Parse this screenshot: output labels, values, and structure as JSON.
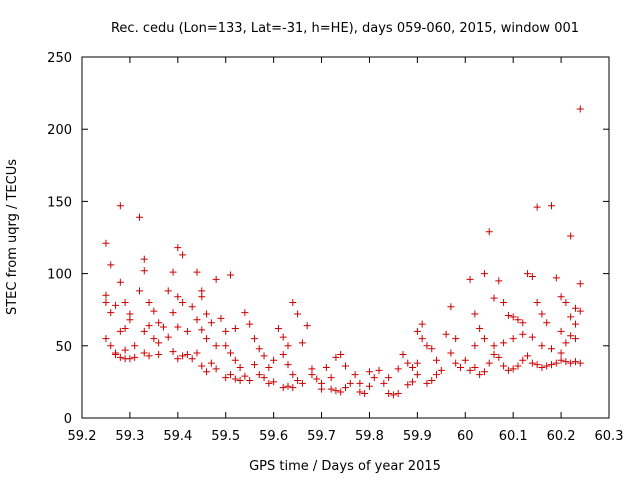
{
  "chart_data": {
    "type": "scatter",
    "title": "Rec. cedu (Lon=133, Lat=-31, h=HE), days 059-060, 2015, window 001",
    "xlabel": "GPS time / Days of year 2015",
    "ylabel": "STEC from uqrg / TECUs",
    "xlim": [
      59.2,
      60.3
    ],
    "ylim": [
      0,
      250
    ],
    "xticks": [
      "59.2",
      "59.3",
      "59.4",
      "59.5",
      "59.6",
      "59.7",
      "59.8",
      "59.9",
      "60",
      "60.1",
      "60.2",
      "60.3"
    ],
    "yticks": [
      "0",
      "50",
      "100",
      "150",
      "200",
      "250"
    ],
    "marker": "+",
    "color": "#cc0000",
    "grid": false,
    "legend": "none",
    "points": [
      [
        59.25,
        121
      ],
      [
        59.26,
        106
      ],
      [
        59.28,
        147
      ],
      [
        59.28,
        94
      ],
      [
        59.25,
        85
      ],
      [
        59.25,
        80
      ],
      [
        59.27,
        78
      ],
      [
        59.29,
        80
      ],
      [
        59.3,
        72
      ],
      [
        59.3,
        68
      ],
      [
        59.26,
        73
      ],
      [
        59.25,
        55
      ],
      [
        59.26,
        50
      ],
      [
        59.27,
        45
      ],
      [
        59.27,
        44
      ],
      [
        59.28,
        42
      ],
      [
        59.29,
        41
      ],
      [
        59.3,
        41
      ],
      [
        59.31,
        42
      ],
      [
        59.29,
        47
      ],
      [
        59.31,
        50
      ],
      [
        59.28,
        60
      ],
      [
        59.29,
        62
      ],
      [
        59.32,
        139
      ],
      [
        59.33,
        110
      ],
      [
        59.33,
        102
      ],
      [
        59.32,
        88
      ],
      [
        59.34,
        80
      ],
      [
        59.35,
        74
      ],
      [
        59.34,
        64
      ],
      [
        59.36,
        66
      ],
      [
        59.33,
        60
      ],
      [
        59.35,
        55
      ],
      [
        59.36,
        52
      ],
      [
        59.33,
        45
      ],
      [
        59.34,
        43
      ],
      [
        59.36,
        44
      ],
      [
        59.37,
        63
      ],
      [
        59.38,
        88
      ],
      [
        59.39,
        101
      ],
      [
        59.4,
        118
      ],
      [
        59.41,
        113
      ],
      [
        59.4,
        84
      ],
      [
        59.41,
        80
      ],
      [
        59.39,
        73
      ],
      [
        59.4,
        63
      ],
      [
        59.42,
        60
      ],
      [
        59.38,
        56
      ],
      [
        59.39,
        46
      ],
      [
        59.41,
        43
      ],
      [
        59.42,
        44
      ],
      [
        59.43,
        41
      ],
      [
        59.4,
        41
      ],
      [
        59.44,
        101
      ],
      [
        59.45,
        88
      ],
      [
        59.45,
        84
      ],
      [
        59.43,
        77
      ],
      [
        59.46,
        72
      ],
      [
        59.44,
        68
      ],
      [
        59.47,
        66
      ],
      [
        59.45,
        61
      ],
      [
        59.46,
        55
      ],
      [
        59.48,
        50
      ],
      [
        59.44,
        45
      ],
      [
        59.45,
        36
      ],
      [
        59.47,
        38
      ],
      [
        59.48,
        34
      ],
      [
        59.46,
        32
      ],
      [
        59.48,
        96
      ],
      [
        59.51,
        99
      ],
      [
        59.49,
        69
      ],
      [
        59.5,
        60
      ],
      [
        59.52,
        62
      ],
      [
        59.5,
        50
      ],
      [
        59.51,
        45
      ],
      [
        59.52,
        40
      ],
      [
        59.53,
        35
      ],
      [
        59.5,
        28
      ],
      [
        59.51,
        30
      ],
      [
        59.52,
        27
      ],
      [
        59.53,
        26
      ],
      [
        59.54,
        29
      ],
      [
        59.55,
        26
      ],
      [
        59.54,
        73
      ],
      [
        59.55,
        65
      ],
      [
        59.56,
        55
      ],
      [
        59.57,
        48
      ],
      [
        59.58,
        43
      ],
      [
        59.56,
        37
      ],
      [
        59.57,
        30
      ],
      [
        59.58,
        28
      ],
      [
        59.59,
        24
      ],
      [
        59.6,
        25
      ],
      [
        59.59,
        35
      ],
      [
        59.6,
        40
      ],
      [
        59.61,
        62
      ],
      [
        59.62,
        56
      ],
      [
        59.63,
        50
      ],
      [
        59.64,
        80
      ],
      [
        59.65,
        72
      ],
      [
        59.66,
        52
      ],
      [
        59.62,
        44
      ],
      [
        59.63,
        37
      ],
      [
        59.64,
        30
      ],
      [
        59.65,
        26
      ],
      [
        59.66,
        24
      ],
      [
        59.67,
        64
      ],
      [
        59.68,
        34
      ],
      [
        59.62,
        21
      ],
      [
        59.63,
        22
      ],
      [
        59.64,
        21
      ],
      [
        59.68,
        30
      ],
      [
        59.69,
        27
      ],
      [
        59.7,
        24
      ],
      [
        59.71,
        35
      ],
      [
        59.72,
        28
      ],
      [
        59.73,
        42
      ],
      [
        59.74,
        44
      ],
      [
        59.75,
        36
      ],
      [
        59.7,
        20
      ],
      [
        59.72,
        20
      ],
      [
        59.73,
        19
      ],
      [
        59.74,
        18
      ],
      [
        59.75,
        21
      ],
      [
        59.76,
        24
      ],
      [
        59.77,
        30
      ],
      [
        59.78,
        18
      ],
      [
        59.79,
        17
      ],
      [
        59.8,
        22
      ],
      [
        59.81,
        28
      ],
      [
        59.82,
        33
      ],
      [
        59.83,
        24
      ],
      [
        59.84,
        17
      ],
      [
        59.85,
        16
      ],
      [
        59.86,
        17
      ],
      [
        59.84,
        28
      ],
      [
        59.86,
        34
      ],
      [
        59.87,
        44
      ],
      [
        59.88,
        38
      ],
      [
        59.8,
        32
      ],
      [
        59.78,
        24
      ],
      [
        59.88,
        23
      ],
      [
        59.89,
        25
      ],
      [
        59.9,
        30
      ],
      [
        59.91,
        65
      ],
      [
        59.9,
        60
      ],
      [
        59.91,
        55
      ],
      [
        59.92,
        50
      ],
      [
        59.93,
        48
      ],
      [
        59.89,
        35
      ],
      [
        59.9,
        38
      ],
      [
        59.92,
        24
      ],
      [
        59.93,
        26
      ],
      [
        59.94,
        30
      ],
      [
        59.95,
        33
      ],
      [
        59.94,
        40
      ],
      [
        59.96,
        58
      ],
      [
        59.97,
        77
      ],
      [
        59.98,
        55
      ],
      [
        59.97,
        45
      ],
      [
        59.98,
        38
      ],
      [
        59.99,
        35
      ],
      [
        60.0,
        40
      ],
      [
        60.01,
        96
      ],
      [
        60.02,
        72
      ],
      [
        60.03,
        62
      ],
      [
        60.04,
        100
      ],
      [
        60.05,
        129
      ],
      [
        60.06,
        83
      ],
      [
        60.07,
        95
      ],
      [
        60.08,
        80
      ],
      [
        60.09,
        71
      ],
      [
        60.1,
        70
      ],
      [
        60.11,
        68
      ],
      [
        60.12,
        66
      ],
      [
        60.13,
        100
      ],
      [
        60.14,
        98
      ],
      [
        60.15,
        80
      ],
      [
        60.16,
        72
      ],
      [
        60.17,
        66
      ],
      [
        60.18,
        147
      ],
      [
        60.19,
        97
      ],
      [
        60.2,
        84
      ],
      [
        60.15,
        146
      ],
      [
        60.22,
        126
      ],
      [
        60.23,
        76
      ],
      [
        60.24,
        93
      ],
      [
        60.24,
        214
      ],
      [
        60.21,
        80
      ],
      [
        60.22,
        70
      ],
      [
        60.23,
        65
      ],
      [
        60.24,
        74
      ],
      [
        60.21,
        52
      ],
      [
        60.22,
        57
      ],
      [
        60.2,
        45
      ],
      [
        60.01,
        33
      ],
      [
        60.02,
        35
      ],
      [
        60.03,
        30
      ],
      [
        60.04,
        32
      ],
      [
        60.05,
        38
      ],
      [
        60.06,
        44
      ],
      [
        60.07,
        42
      ],
      [
        60.08,
        36
      ],
      [
        60.09,
        33
      ],
      [
        60.1,
        34
      ],
      [
        60.11,
        36
      ],
      [
        60.12,
        40
      ],
      [
        60.13,
        43
      ],
      [
        60.14,
        38
      ],
      [
        60.15,
        37
      ],
      [
        60.16,
        35
      ],
      [
        60.17,
        36
      ],
      [
        60.18,
        37
      ],
      [
        60.19,
        38
      ],
      [
        60.2,
        40
      ],
      [
        60.21,
        39
      ],
      [
        60.22,
        38
      ],
      [
        60.23,
        39
      ],
      [
        60.24,
        38
      ],
      [
        60.02,
        50
      ],
      [
        60.04,
        55
      ],
      [
        60.06,
        50
      ],
      [
        60.08,
        52
      ],
      [
        60.1,
        55
      ],
      [
        60.12,
        58
      ],
      [
        60.14,
        56
      ],
      [
        60.16,
        50
      ],
      [
        60.18,
        48
      ],
      [
        60.2,
        60
      ],
      [
        60.23,
        55
      ]
    ]
  }
}
